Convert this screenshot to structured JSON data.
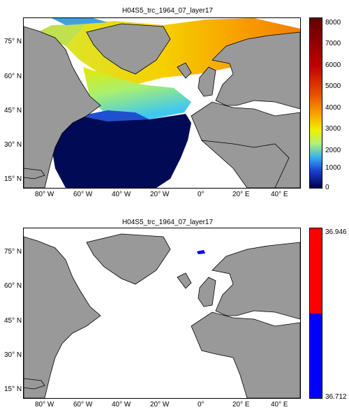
{
  "top_panel": {
    "title": "H04S5_trc_1964_07_layer17",
    "colorbar": {
      "ticks": [
        "8000",
        "7000",
        "6000",
        "5000",
        "4000",
        "3000",
        "2000",
        "1000",
        "0"
      ],
      "min": 0,
      "max": 8000,
      "colormap": [
        "#000050",
        "#1a3fd0",
        "#39b0f0",
        "#aef07a",
        "#f0f000",
        "#f8a000",
        "#e85000",
        "#c00000",
        "#600000"
      ]
    }
  },
  "bottom_panel": {
    "title": "H04S5_trc_1964_07_layer17",
    "colorbar": {
      "top_label": "36.946",
      "bottom_label": "36.712",
      "segments": [
        "#ff0000",
        "#0000ff"
      ]
    }
  },
  "axes": {
    "lat_labels": [
      "75° N",
      "60° N",
      "45° N",
      "30° N",
      "15° N"
    ],
    "lon_labels": [
      "80° W",
      "60° W",
      "40° W",
      "20° W",
      "0°",
      "20° E",
      "40° E"
    ]
  },
  "colors": {
    "land": "#999999",
    "ocean_nodata": "#ffffff"
  }
}
